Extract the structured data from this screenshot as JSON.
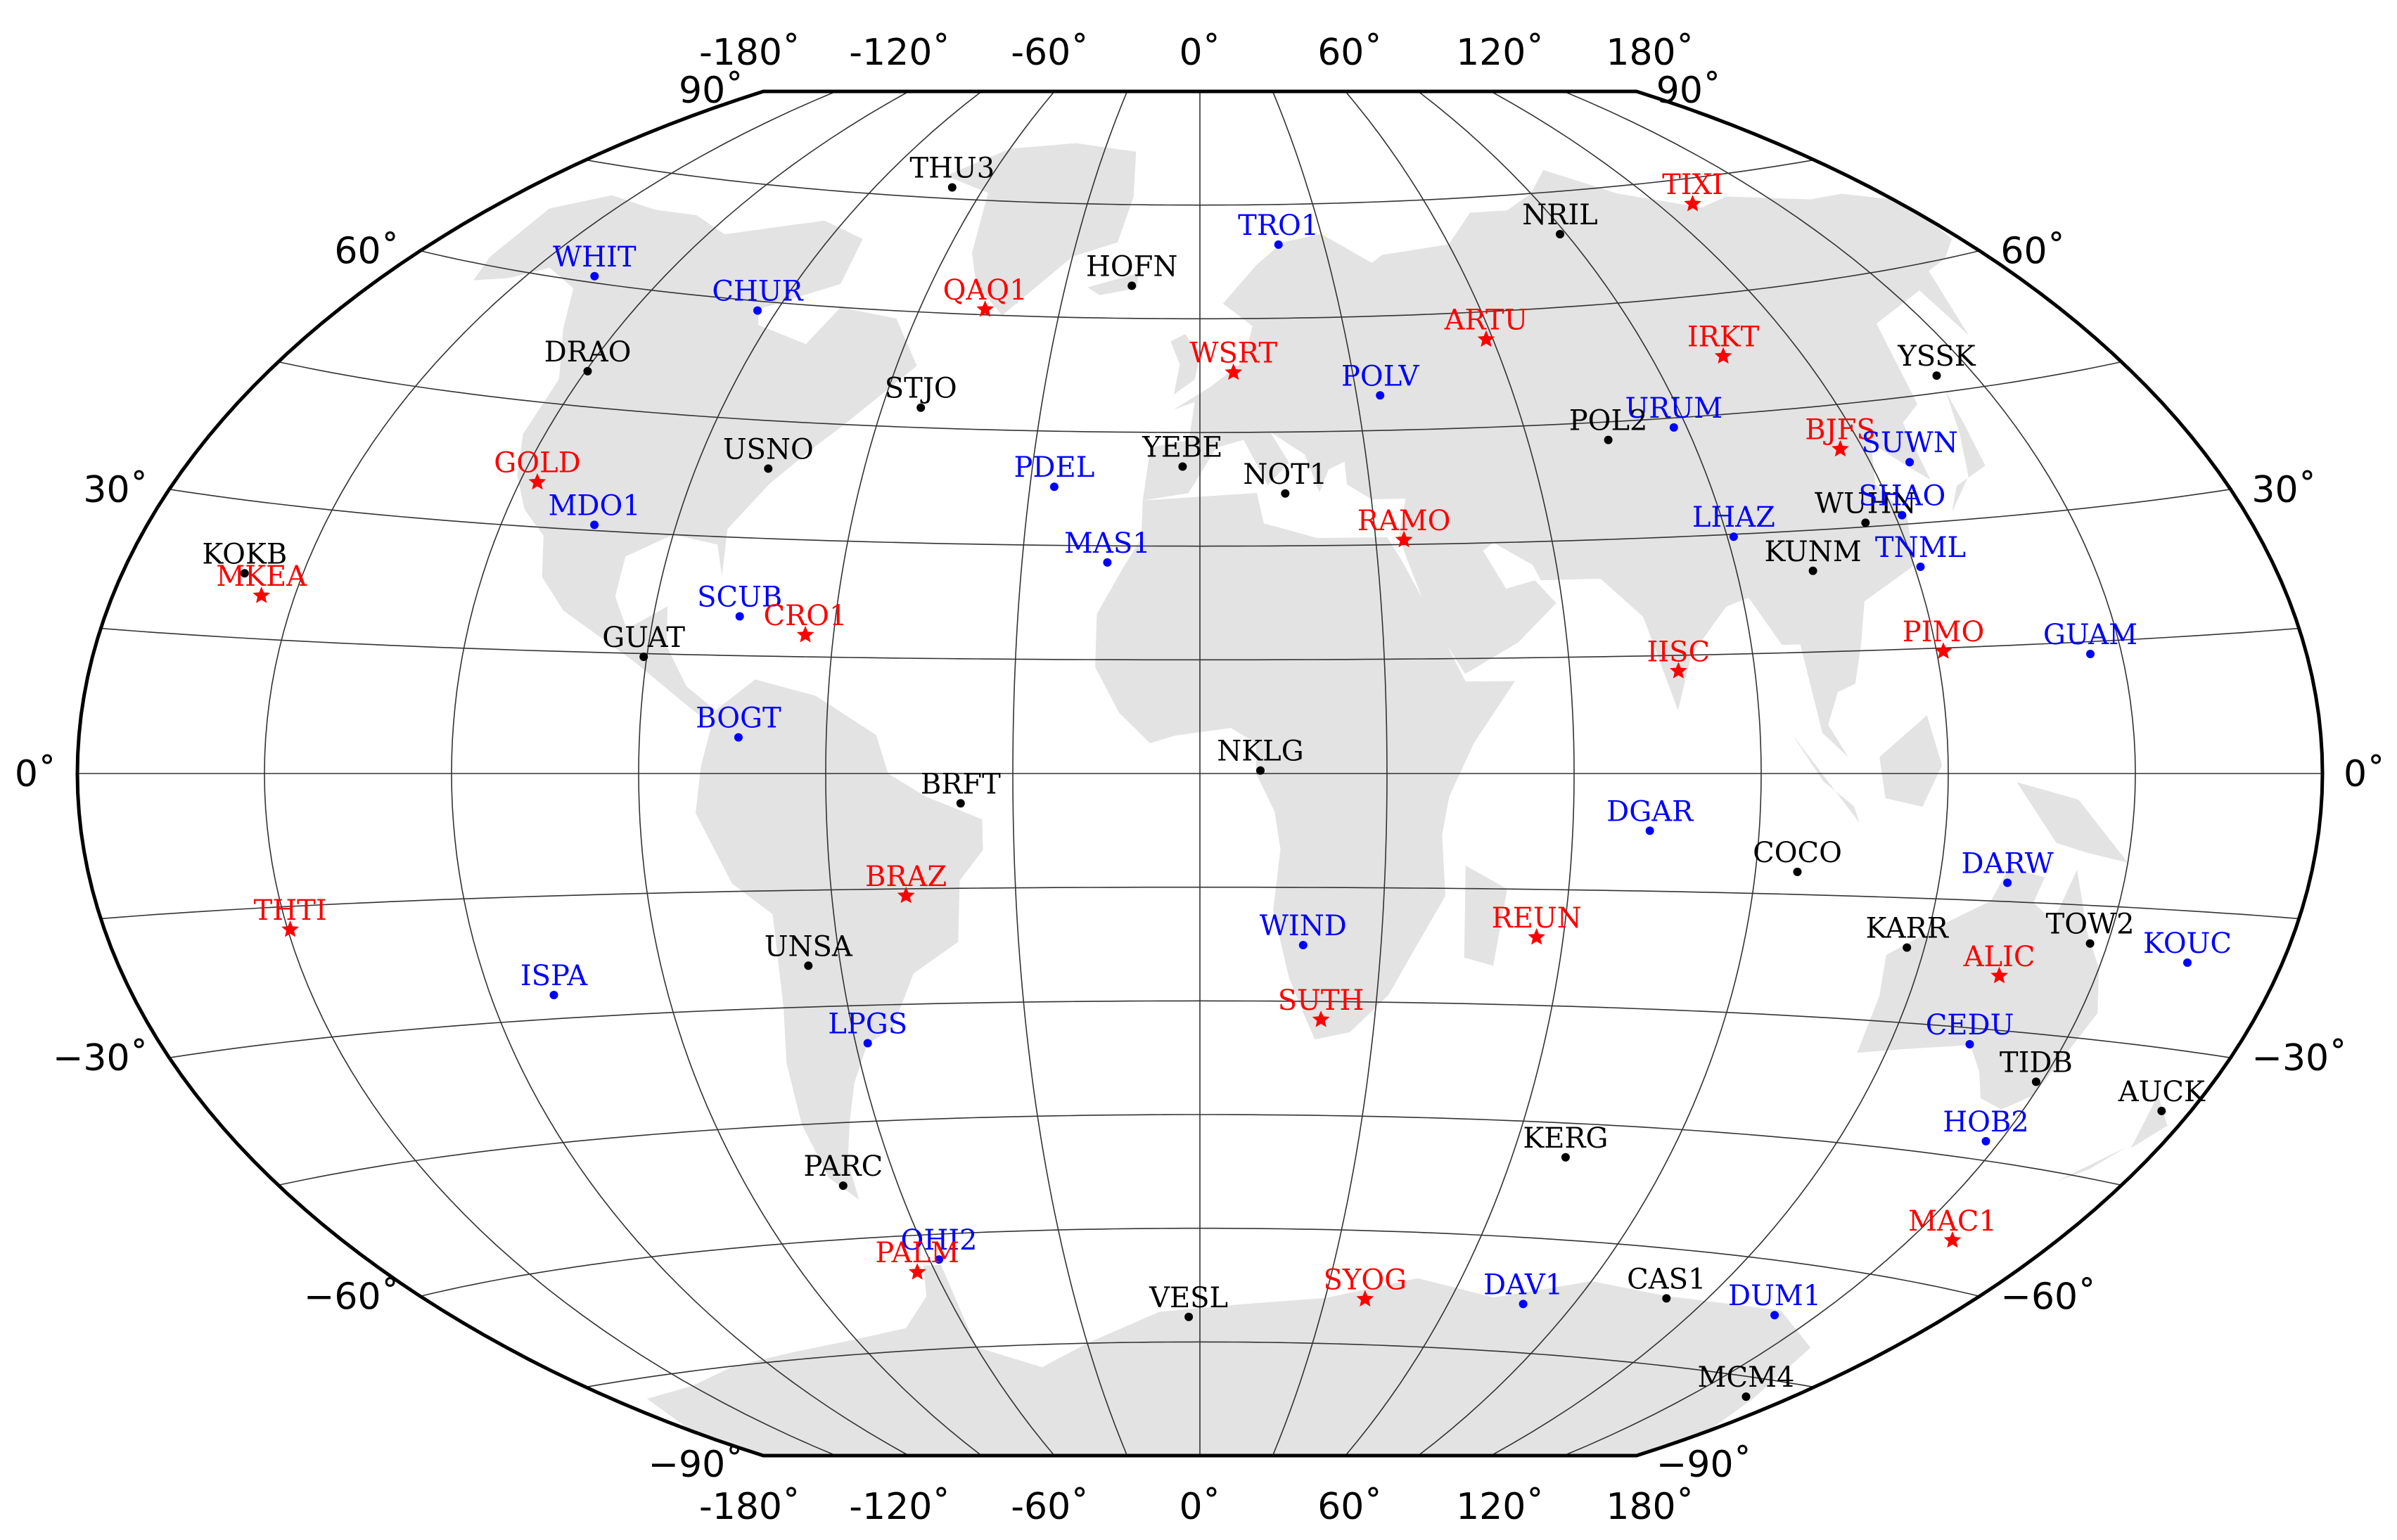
{
  "map": {
    "projection": "winkel-tripel",
    "frame_color": "#000000",
    "land_color": "#e3e3e3",
    "top_lon_labels": [
      "-180˚",
      "-120˚",
      "-60˚",
      "0˚",
      "60˚",
      "120˚",
      "180˚"
    ],
    "bottom_lon_labels": [
      "-180˚",
      "-120˚",
      "-60˚",
      "0˚",
      "60˚",
      "120˚",
      "180˚"
    ],
    "left_lat_labels": [
      "90˚",
      "60˚",
      "30˚",
      "0˚",
      "−30˚",
      "−60˚",
      "−90˚"
    ],
    "right_lat_labels": [
      "90˚",
      "60˚",
      "30˚",
      "0˚",
      "−30˚",
      "−60˚",
      "−90˚"
    ]
  },
  "station_colors": {
    "black": "#000000",
    "blue": "#0000ff",
    "red": "#ff0000"
  },
  "stations": [
    {
      "name": "THU3",
      "color": "black",
      "marker": "dot",
      "lon": -68.8,
      "lat": 76.5
    },
    {
      "name": "TIXI",
      "color": "red",
      "marker": "star",
      "lon": 128.9,
      "lat": 71.6
    },
    {
      "name": "NRIL",
      "color": "black",
      "marker": "dot",
      "lon": 88.4,
      "lat": 69.4
    },
    {
      "name": "TRO1",
      "color": "blue",
      "marker": "dot",
      "lon": 19.0,
      "lat": 69.7
    },
    {
      "name": "WHIT",
      "color": "blue",
      "marker": "dot",
      "lon": -135.2,
      "lat": 60.8
    },
    {
      "name": "HOFN",
      "color": "black",
      "marker": "dot",
      "lon": -15.2,
      "lat": 64.3
    },
    {
      "name": "CHUR",
      "color": "blue",
      "marker": "dot",
      "lon": -94.1,
      "lat": 58.8
    },
    {
      "name": "QAQ1",
      "color": "red",
      "marker": "star",
      "lon": -46.0,
      "lat": 60.7
    },
    {
      "name": "ARTU",
      "color": "red",
      "marker": "star",
      "lon": 58.6,
      "lat": 56.4
    },
    {
      "name": "WSRT",
      "color": "red",
      "marker": "star",
      "lon": 6.6,
      "lat": 52.9
    },
    {
      "name": "IRKT",
      "color": "red",
      "marker": "star",
      "lon": 104.3,
      "lat": 52.2
    },
    {
      "name": "DRAO",
      "color": "black",
      "marker": "dot",
      "lon": -119.6,
      "lat": 49.3
    },
    {
      "name": "POLV",
      "color": "blue",
      "marker": "dot",
      "lon": 34.5,
      "lat": 49.6
    },
    {
      "name": "YSSK",
      "color": "black",
      "marker": "dot",
      "lon": 142.7,
      "lat": 47.0
    },
    {
      "name": "STJO",
      "color": "black",
      "marker": "dot",
      "lon": -52.7,
      "lat": 47.6
    },
    {
      "name": "URUM",
      "color": "blue",
      "marker": "dot",
      "lon": 87.6,
      "lat": 43.8
    },
    {
      "name": "POL2",
      "color": "black",
      "marker": "dot",
      "lon": 74.7,
      "lat": 42.7
    },
    {
      "name": "BJFS",
      "color": "red",
      "marker": "star",
      "lon": 115.9,
      "lat": 39.6
    },
    {
      "name": "SUWN",
      "color": "blue",
      "marker": "dot",
      "lon": 127.0,
      "lat": 37.3
    },
    {
      "name": "GOLD",
      "color": "red",
      "marker": "star",
      "lon": -116.9,
      "lat": 35.4
    },
    {
      "name": "USNO",
      "color": "black",
      "marker": "dot",
      "lon": -77.1,
      "lat": 38.9
    },
    {
      "name": "PDEL",
      "color": "blue",
      "marker": "dot",
      "lon": -25.7,
      "lat": 37.7
    },
    {
      "name": "YEBE",
      "color": "black",
      "marker": "dot",
      "lon": -3.1,
      "lat": 40.5
    },
    {
      "name": "NOT1",
      "color": "black",
      "marker": "dot",
      "lon": 14.99,
      "lat": 36.9
    },
    {
      "name": "MDO1",
      "color": "blue",
      "marker": "dot",
      "lon": -104.0,
      "lat": 30.7
    },
    {
      "name": "WUHN",
      "color": "black",
      "marker": "dot",
      "lon": 114.4,
      "lat": 30.5
    },
    {
      "name": "SHAO",
      "color": "blue",
      "marker": "dot",
      "lon": 121.2,
      "lat": 31.1
    },
    {
      "name": "RAMO",
      "color": "red",
      "marker": "star",
      "lon": 34.8,
      "lat": 30.6
    },
    {
      "name": "LHAZ",
      "color": "blue",
      "marker": "dot",
      "lon": 91.1,
      "lat": 29.7
    },
    {
      "name": "KOKB",
      "color": "black",
      "marker": "dot",
      "lon": -159.7,
      "lat": 22.1
    },
    {
      "name": "MKEA",
      "color": "red",
      "marker": "star",
      "lon": -155.5,
      "lat": 19.8
    },
    {
      "name": "KUNM",
      "color": "black",
      "marker": "dot",
      "lon": 102.8,
      "lat": 25.0
    },
    {
      "name": "TNML",
      "color": "blue",
      "marker": "dot",
      "lon": 121.0,
      "lat": 24.8
    },
    {
      "name": "MAS1",
      "color": "blue",
      "marker": "dot",
      "lon": -15.6,
      "lat": 27.8
    },
    {
      "name": "SCUB",
      "color": "blue",
      "marker": "dot",
      "lon": -75.8,
      "lat": 20.0
    },
    {
      "name": "CRO1",
      "color": "red",
      "marker": "star",
      "lon": -64.6,
      "lat": 17.8
    },
    {
      "name": "GUAT",
      "color": "black",
      "marker": "dot",
      "lon": -90.5,
      "lat": 14.6
    },
    {
      "name": "IISC",
      "color": "red",
      "marker": "star",
      "lon": 77.6,
      "lat": 13.0
    },
    {
      "name": "PIMO",
      "color": "red",
      "marker": "star",
      "lon": 121.1,
      "lat": 14.6
    },
    {
      "name": "GUAM",
      "color": "blue",
      "marker": "dot",
      "lon": 144.9,
      "lat": 13.6
    },
    {
      "name": "BOGT",
      "color": "blue",
      "marker": "dot",
      "lon": -74.1,
      "lat": 4.6
    },
    {
      "name": "NKLG",
      "color": "black",
      "marker": "dot",
      "lon": 9.7,
      "lat": 0.4
    },
    {
      "name": "BRFT",
      "color": "black",
      "marker": "dot",
      "lon": -38.4,
      "lat": -3.9
    },
    {
      "name": "DGAR",
      "color": "blue",
      "marker": "dot",
      "lon": 72.4,
      "lat": -7.3
    },
    {
      "name": "COCO",
      "color": "black",
      "marker": "dot",
      "lon": 96.8,
      "lat": -12.2
    },
    {
      "name": "DARW",
      "color": "blue",
      "marker": "dot",
      "lon": 131.1,
      "lat": -12.8
    },
    {
      "name": "BRAZ",
      "color": "red",
      "marker": "star",
      "lon": -47.9,
      "lat": -15.9
    },
    {
      "name": "THTI",
      "color": "red",
      "marker": "star",
      "lon": -149.6,
      "lat": -17.6
    },
    {
      "name": "WIND",
      "color": "blue",
      "marker": "dot",
      "lon": 17.1,
      "lat": -22.6
    },
    {
      "name": "REUN",
      "color": "red",
      "marker": "star",
      "lon": 55.6,
      "lat": -21.2
    },
    {
      "name": "KARR",
      "color": "black",
      "marker": "dot",
      "lon": 117.1,
      "lat": -20.98
    },
    {
      "name": "TOW2",
      "color": "black",
      "marker": "dot",
      "lon": 147.1,
      "lat": -19.3
    },
    {
      "name": "KOUC",
      "color": "blue",
      "marker": "dot",
      "lon": 164.3,
      "lat": -20.6
    },
    {
      "name": "ALIC",
      "color": "red",
      "marker": "star",
      "lon": 133.9,
      "lat": -23.7
    },
    {
      "name": "ISPA",
      "color": "blue",
      "marker": "dot",
      "lon": -109.3,
      "lat": -27.1
    },
    {
      "name": "UNSA",
      "color": "black",
      "marker": "dot",
      "lon": -65.4,
      "lat": -24.7
    },
    {
      "name": "SUTH",
      "color": "red",
      "marker": "star",
      "lon": 20.8,
      "lat": -32.4
    },
    {
      "name": "LPGS",
      "color": "blue",
      "marker": "dot",
      "lon": -57.9,
      "lat": -34.9
    },
    {
      "name": "CEDU",
      "color": "blue",
      "marker": "dot",
      "lon": 133.8,
      "lat": -31.9
    },
    {
      "name": "TIDB",
      "color": "black",
      "marker": "dot",
      "lon": 148.98,
      "lat": -35.4
    },
    {
      "name": "AUCK",
      "color": "black",
      "marker": "dot",
      "lon": 174.8,
      "lat": -36.6
    },
    {
      "name": "HOB2",
      "color": "blue",
      "marker": "dot",
      "lon": 147.4,
      "lat": -42.8
    },
    {
      "name": "KERG",
      "color": "black",
      "marker": "dot",
      "lon": 70.3,
      "lat": -49.4
    },
    {
      "name": "PARC",
      "color": "black",
      "marker": "dot",
      "lon": -70.9,
      "lat": -53.1
    },
    {
      "name": "MAC1",
      "color": "red",
      "marker": "star",
      "lon": 158.9,
      "lat": -54.5
    },
    {
      "name": "OHI2",
      "color": "blue",
      "marker": "dot",
      "lon": -57.9,
      "lat": -63.3
    },
    {
      "name": "PALM",
      "color": "red",
      "marker": "star",
      "lon": -64.1,
      "lat": -64.8
    },
    {
      "name": "SYOG",
      "color": "red",
      "marker": "star",
      "lon": 39.6,
      "lat": -69.0
    },
    {
      "name": "DAV1",
      "color": "blue",
      "marker": "dot",
      "lon": 77.97,
      "lat": -68.6
    },
    {
      "name": "CAS1",
      "color": "black",
      "marker": "dot",
      "lon": 110.5,
      "lat": -66.3
    },
    {
      "name": "DUM1",
      "color": "blue",
      "marker": "dot",
      "lon": 140.0,
      "lat": -66.7
    },
    {
      "name": "VESL",
      "color": "black",
      "marker": "dot",
      "lon": -2.8,
      "lat": -71.7
    },
    {
      "name": "MCM4",
      "color": "black",
      "marker": "dot",
      "lon": 166.7,
      "lat": -77.8
    }
  ]
}
